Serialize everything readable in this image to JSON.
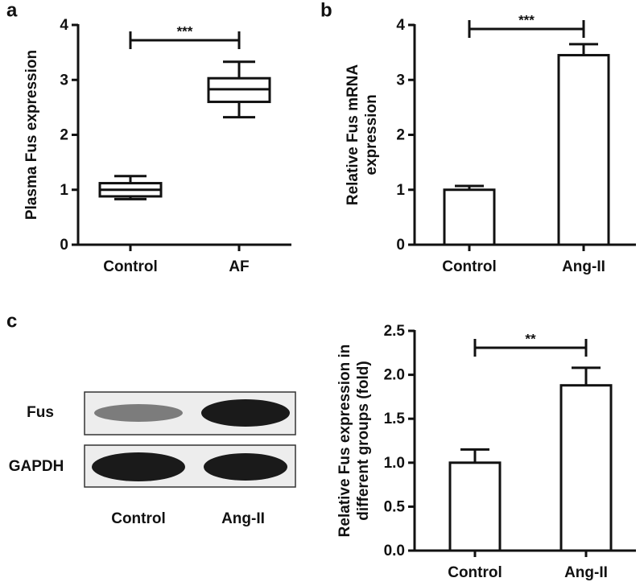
{
  "panel_labels": [
    "a",
    "b",
    "c"
  ],
  "chart_data": [
    {
      "type": "box",
      "ylabel": [
        "Plasma Fus expression"
      ],
      "categories": [
        "Control",
        "AF"
      ],
      "boxes": [
        {
          "low": 0.83,
          "q1": 0.88,
          "median": 1.0,
          "q3": 1.12,
          "high": 1.25
        },
        {
          "low": 2.32,
          "q1": 2.6,
          "median": 2.83,
          "q3": 3.03,
          "high": 3.33
        }
      ],
      "ylim": [
        0,
        4
      ],
      "yticks": [
        0,
        1,
        2,
        3,
        4
      ],
      "annotation": "***"
    },
    {
      "type": "bar",
      "ylabel": [
        "Relative Fus mRNA",
        "expression"
      ],
      "categories": [
        "Control",
        "Ang-II"
      ],
      "values": [
        1.0,
        3.45
      ],
      "errors": [
        0.07,
        0.2
      ],
      "ylim": [
        0,
        4
      ],
      "yticks": [
        0,
        1,
        2,
        3,
        4
      ],
      "annotation": "***"
    },
    {
      "type": "bar",
      "ylabel": [
        "Relative Fus expression in",
        "different groups (fold)"
      ],
      "categories": [
        "Control",
        "Ang-II"
      ],
      "values": [
        1.0,
        1.88
      ],
      "errors": [
        0.15,
        0.2
      ],
      "ylim": [
        0,
        2.5
      ],
      "yticks": [
        {
          "value": 0,
          "label": "0.0"
        },
        0.5,
        {
          "value": 1,
          "label": "1.0"
        },
        1.5,
        {
          "value": 2,
          "label": "2.0"
        },
        2.5
      ],
      "annotation": "**"
    }
  ],
  "blot": {
    "rows": [
      "Fus",
      "GAPDH"
    ],
    "lanes": [
      "Control",
      "Ang-II"
    ]
  }
}
